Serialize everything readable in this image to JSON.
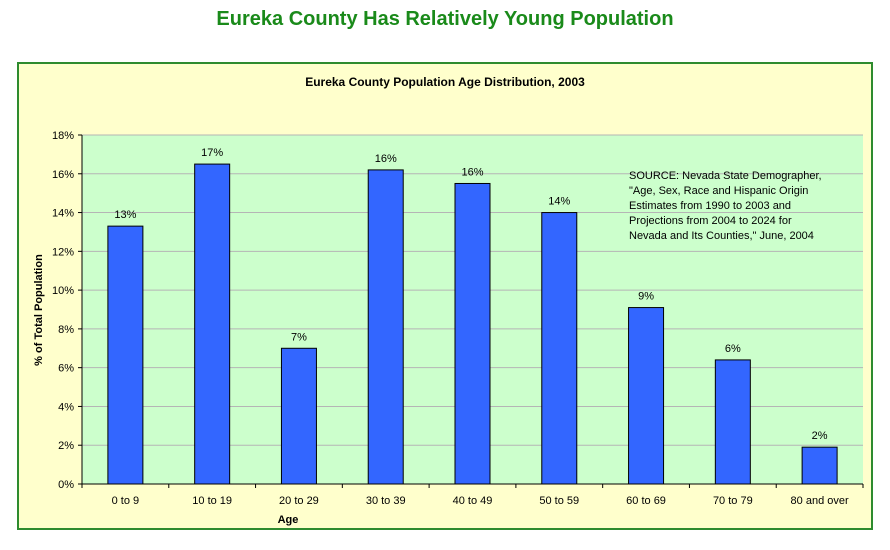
{
  "page_title": "Eureka County Has Relatively Young Population",
  "source_note": "SOURCE: Nevada State Demographer, \"Age, Sex, Race and Hispanic Origin Estimates from 1990 to 2003 and Projections from 2004 to 2024 for Nevada and Its Counties,\" June, 2004",
  "colors": {
    "bar": "#3366ff",
    "plot_bg": "#ccffcc",
    "frame_bg": "#ffffcc",
    "frame_border": "#2e8b2e",
    "title": "#1a8a1a"
  },
  "chart_data": {
    "type": "bar",
    "title": "Eureka County Population Age Distribution, 2003",
    "xlabel": "Age",
    "ylabel": "% of Total Population",
    "categories": [
      "0 to 9",
      "10 to 19",
      "20 to 29",
      "30 to 39",
      "40 to 49",
      "50 to 59",
      "60 to 69",
      "70 to 79",
      "80 and over"
    ],
    "values": [
      13.3,
      16.5,
      7.0,
      16.2,
      15.5,
      14.0,
      9.1,
      6.4,
      1.9
    ],
    "data_labels": [
      "13%",
      "17%",
      "7%",
      "16%",
      "16%",
      "14%",
      "9%",
      "6%",
      "2%"
    ],
    "ylim": [
      0,
      18
    ],
    "yticks": [
      0,
      2,
      4,
      6,
      8,
      10,
      12,
      14,
      16,
      18
    ],
    "ytick_labels": [
      "0%",
      "2%",
      "4%",
      "6%",
      "8%",
      "10%",
      "12%",
      "14%",
      "16%",
      "18%"
    ],
    "grid": true,
    "legend": false
  }
}
